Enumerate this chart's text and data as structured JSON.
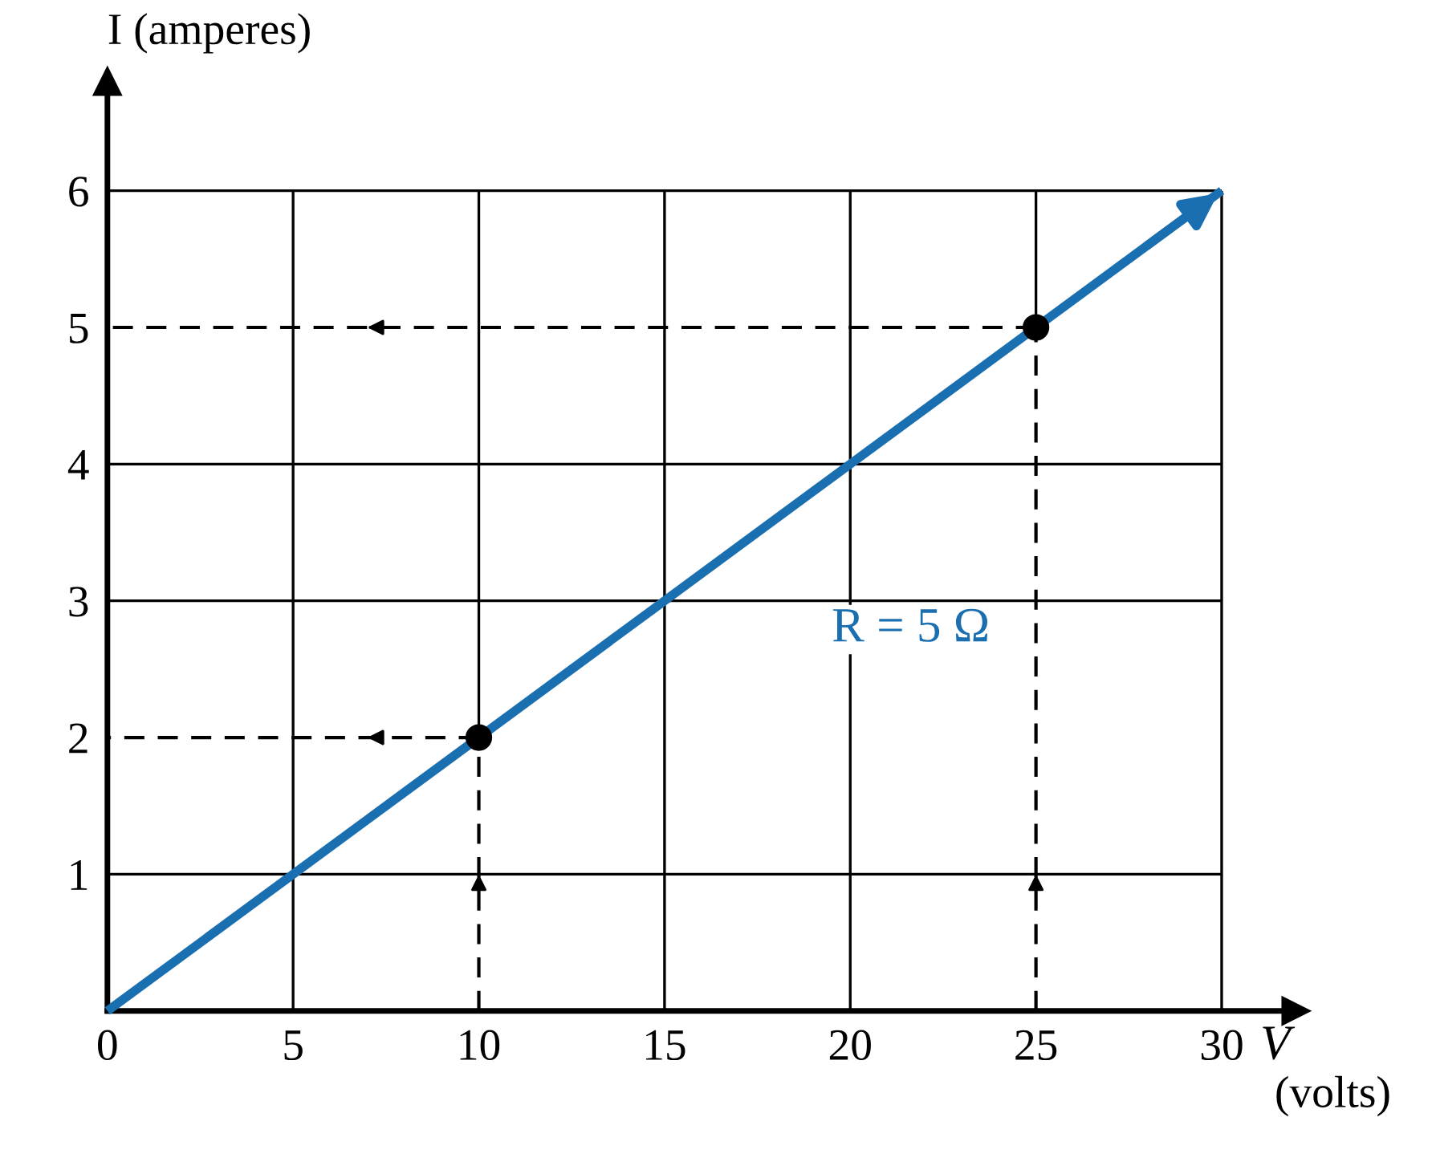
{
  "chart_data": {
    "type": "line",
    "xlabel": "V (volts)",
    "ylabel": "I (amperes)",
    "xlim": [
      0,
      32
    ],
    "ylim": [
      0,
      6.8
    ],
    "xticks": [
      0,
      5,
      10,
      15,
      20,
      25,
      30
    ],
    "yticks": [
      1,
      2,
      3,
      4,
      5,
      6
    ],
    "grid": true,
    "series": [
      {
        "type": "line",
        "name": "R = 5 Ω",
        "color": "#1a6fb0",
        "x": [
          0,
          30
        ],
        "values": [
          0,
          6
        ],
        "line_style": "solid",
        "marker": "none"
      },
      {
        "type": "line",
        "color": "#000000",
        "x": [
          10,
          10
        ],
        "values": [
          0,
          2
        ],
        "line_style": "dashed",
        "marker": "none"
      },
      {
        "type": "line",
        "color": "#000000",
        "x": [
          10,
          0
        ],
        "values": [
          2,
          2
        ],
        "line_style": "dashed",
        "marker": "none"
      },
      {
        "type": "line",
        "color": "#000000",
        "x": [
          25,
          25
        ],
        "values": [
          0,
          5
        ],
        "line_style": "dashed",
        "marker": "none"
      },
      {
        "type": "line",
        "color": "#000000",
        "x": [
          25,
          0
        ],
        "values": [
          5,
          5
        ],
        "line_style": "dashed",
        "marker": "none"
      },
      {
        "type": "line",
        "color": "#000000",
        "x": [
          10,
          10
        ],
        "values": [
          2,
          6
        ],
        "line_style": "solid",
        "marker": "none"
      },
      {
        "type": "line",
        "color": "#000000",
        "x": [
          25,
          25
        ],
        "values": [
          5,
          6
        ],
        "line_style": "solid",
        "marker": "none"
      },
      {
        "type": "scatter",
        "color": "#000000",
        "x": [
          10,
          25
        ],
        "values": [
          2,
          5
        ],
        "marker": "circle"
      }
    ]
  }
}
